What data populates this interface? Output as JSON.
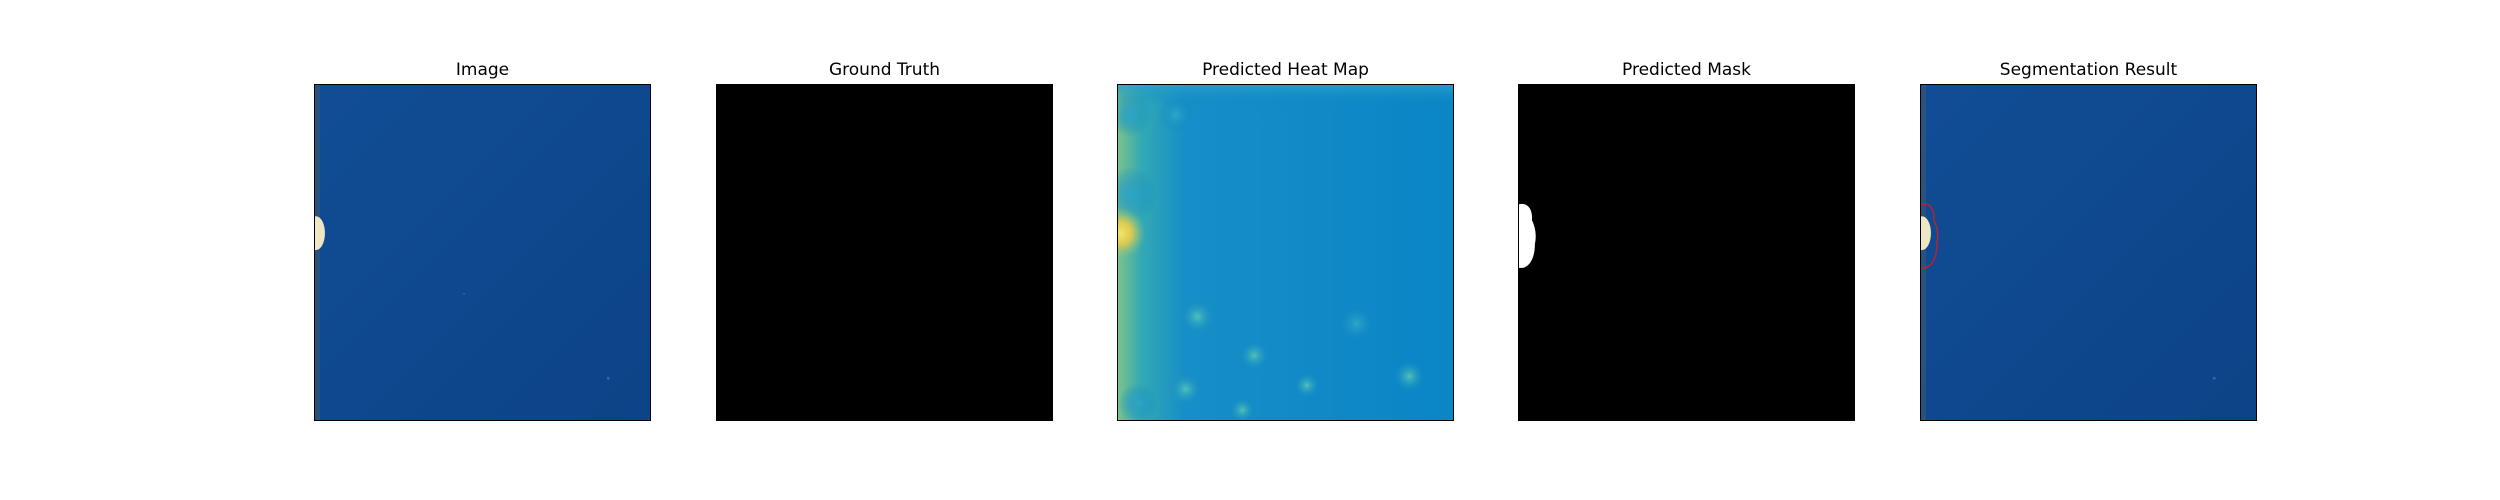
{
  "figure": {
    "panels": [
      {
        "title": "Image",
        "kind": "photo"
      },
      {
        "title": "Ground Truth",
        "kind": "ground-truth-mask"
      },
      {
        "title": "Predicted Heat Map",
        "kind": "heat-map"
      },
      {
        "title": "Predicted Mask",
        "kind": "predicted-mask"
      },
      {
        "title": "Segmentation Result",
        "kind": "segmentation-overlay"
      }
    ],
    "colors": {
      "surface_blue": "#0f4a91",
      "surface_blue_dark": "#0b3d7d",
      "defect_cream": "#efe6c3",
      "mask_background": "#000000",
      "mask_foreground": "#ffffff",
      "heat_base": "#0a85c6",
      "heat_edge": "#7bc28c",
      "heat_hot": "#f3d35c",
      "contour_red": "#c0202a"
    }
  }
}
